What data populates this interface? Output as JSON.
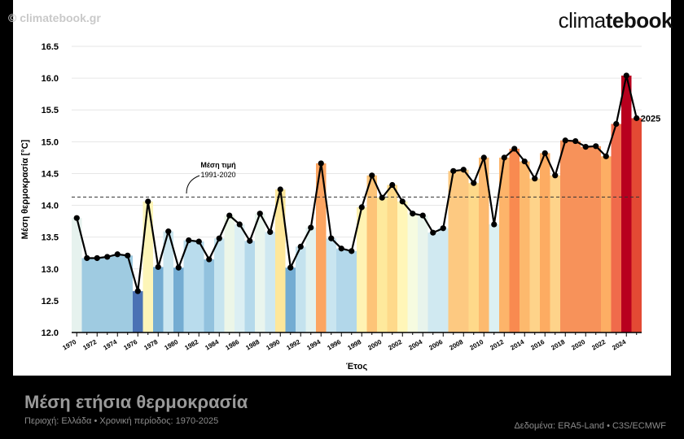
{
  "watermark": "© climatebook.gr",
  "logo": {
    "light": "clima",
    "bold": "tebook"
  },
  "footer": {
    "title": "Μέση ετήσια θερμοκρασία",
    "subtitle": "Περιοχή: Ελλάδα • Χρονική περίοδος: 1970-2025",
    "source": "Δεδομένα: ERA5-Land • C3S/ECMWF"
  },
  "chart_data": {
    "type": "bar",
    "title": "Μέση ετήσια θερμοκρασία",
    "xlabel": "Έτος",
    "ylabel": "Μέση θερμοκρασία [°C]",
    "ylim": [
      12.0,
      16.5
    ],
    "yticks": [
      "12.0",
      "12.5",
      "13.0",
      "13.5",
      "14.0",
      "14.5",
      "15.0",
      "15.5",
      "16.0",
      "16.5"
    ],
    "x": [
      1970,
      1971,
      1972,
      1973,
      1974,
      1975,
      1976,
      1977,
      1978,
      1979,
      1980,
      1981,
      1982,
      1983,
      1984,
      1985,
      1986,
      1987,
      1988,
      1989,
      1990,
      1991,
      1992,
      1993,
      1994,
      1995,
      1996,
      1997,
      1998,
      1999,
      2000,
      2001,
      2002,
      2003,
      2004,
      2005,
      2006,
      2007,
      2008,
      2009,
      2010,
      2011,
      2012,
      2013,
      2014,
      2015,
      2016,
      2017,
      2018,
      2019,
      2020,
      2021,
      2022,
      2023,
      2024,
      2025
    ],
    "xtick_labels": [
      "1970",
      "1972",
      "1974",
      "1976",
      "1978",
      "1980",
      "1982",
      "1984",
      "1986",
      "1988",
      "1990",
      "1992",
      "1994",
      "1996",
      "1998",
      "2000",
      "2002",
      "2004",
      "2006",
      "2008",
      "2010",
      "2012",
      "2014",
      "2016",
      "2018",
      "2020",
      "2022",
      "2024"
    ],
    "values": [
      13.8,
      13.17,
      13.17,
      13.19,
      13.23,
      13.21,
      12.65,
      14.06,
      13.03,
      13.59,
      13.02,
      13.45,
      13.43,
      13.15,
      13.48,
      13.84,
      13.7,
      13.44,
      13.87,
      13.58,
      14.25,
      13.02,
      13.35,
      13.65,
      14.66,
      13.48,
      13.32,
      13.28,
      13.97,
      14.47,
      14.12,
      14.32,
      14.06,
      13.87,
      13.84,
      13.57,
      13.64,
      14.54,
      14.56,
      14.35,
      14.75,
      13.7,
      14.75,
      14.89,
      14.69,
      14.42,
      14.82,
      14.47,
      15.02,
      15.01,
      14.92,
      14.93,
      14.77,
      15.28,
      16.04,
      15.37
    ],
    "bar_colors": [
      "#e6f2ee",
      "#9fcbe1",
      "#9fcbe1",
      "#9fcbe1",
      "#9fcbe1",
      "#9fcbe1",
      "#4a72b4",
      "#fdf5b8",
      "#74acd2",
      "#cbe6f0",
      "#74acd2",
      "#b9dced",
      "#b9dced",
      "#92c2de",
      "#c6e4ef",
      "#ecf6e8",
      "#dceff3",
      "#b5d9eb",
      "#e9f5ee",
      "#cfe8f1",
      "#fee79a",
      "#74acd2",
      "#c4e2ee",
      "#e2f2f0",
      "#fca562",
      "#c9e5f0",
      "#b2d7ea",
      "#b2d7ea",
      "#fff3b3",
      "#fdc478",
      "#fee99c",
      "#fed98a",
      "#fff6b8",
      "#f6fbe0",
      "#e8f4ec",
      "#d0e9f1",
      "#d0e9f1",
      "#fdc981",
      "#fdc981",
      "#fed98a",
      "#fdba6f",
      "#dcf0f2",
      "#fdb46a",
      "#f98a50",
      "#fdb96d",
      "#fed38a",
      "#fdac62",
      "#fed38a",
      "#f7925a",
      "#f7925a",
      "#f7925a",
      "#f7925a",
      "#fdae64",
      "#f06b4b",
      "#b8001e",
      "#e34a34"
    ],
    "last_label": "2025",
    "reference": {
      "value": 14.13,
      "label": "Μέση τιμή",
      "period": "1991-2020"
    },
    "colors": {
      "line": "#000000",
      "reference": "#333333",
      "axis": "#000000",
      "grid": "#e6e6e6"
    }
  }
}
